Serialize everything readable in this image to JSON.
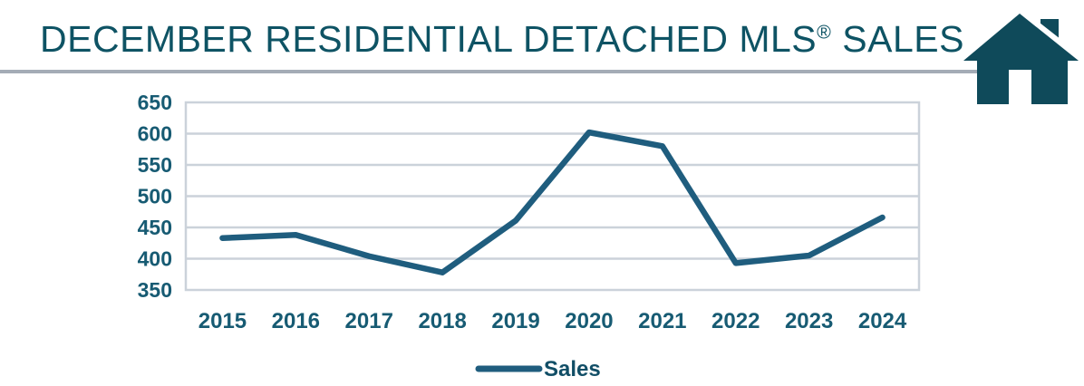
{
  "header": {
    "title_pre": "DECEMBER RESIDENTIAL DETACHED MLS",
    "title_reg": "®",
    "title_post": " SALES"
  },
  "colors": {
    "title": "#0E5364",
    "house_icon": "#0F4A5A",
    "divider": "#A4ACB6",
    "grid": "#CBD2DA",
    "tick_label": "#175B73",
    "line": "#1F5D7E",
    "legend_text": "#114E66"
  },
  "chart_data": {
    "type": "line",
    "title": "DECEMBER RESIDENTIAL DETACHED MLS® SALES",
    "categories": [
      "2015",
      "2016",
      "2017",
      "2018",
      "2019",
      "2020",
      "2021",
      "2022",
      "2023",
      "2024"
    ],
    "series": [
      {
        "name": "Sales",
        "values": [
          433,
          438,
          404,
          378,
          461,
          602,
          580,
          393,
          405,
          466
        ]
      }
    ],
    "xlabel": "",
    "ylabel": "",
    "ylim": [
      350,
      650
    ],
    "ytick_step": 50,
    "yticks": [
      350,
      400,
      450,
      500,
      550,
      600,
      650
    ],
    "grid": true,
    "legend_position": "bottom",
    "legend_label": "Sales"
  }
}
